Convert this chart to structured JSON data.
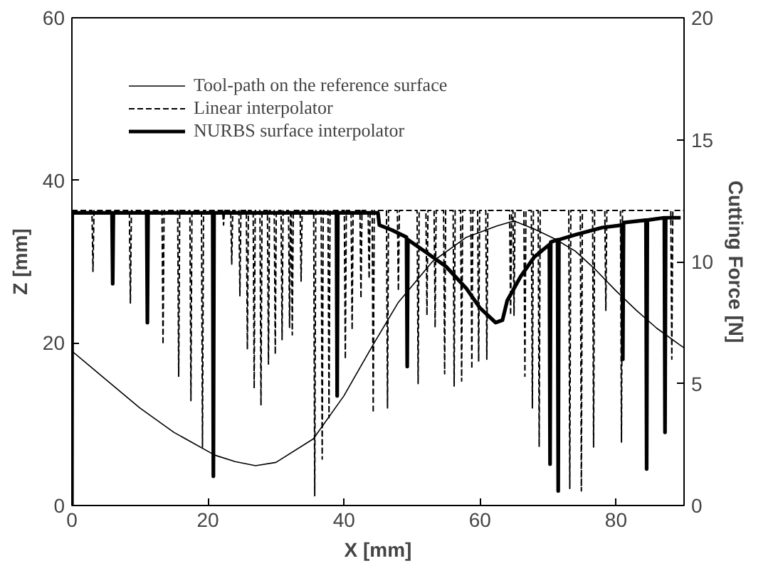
{
  "chart_data": {
    "type": "line",
    "xlabel": "X [mm]",
    "ylabel": "Z [mm]",
    "y2label": "Cutting Force [N]",
    "xlim": [
      0,
      90
    ],
    "xticks": [
      0,
      20,
      40,
      60,
      80
    ],
    "ylim": [
      0,
      60
    ],
    "yticks": [
      0,
      20,
      40,
      60
    ],
    "y2lim": [
      0,
      20
    ],
    "y2ticks": [
      0,
      5,
      10,
      15,
      20
    ],
    "grid": false,
    "legend": "top left",
    "marker": "none",
    "series": [
      {
        "name": "Tool-path on the reference surface",
        "color": "#000000",
        "line_style": "solid",
        "x": [
          0,
          5,
          10,
          15,
          21,
          24,
          27,
          30,
          35.5,
          40,
          44.3,
          48,
          53,
          58,
          62.5,
          65,
          68,
          71,
          74,
          77,
          80,
          83,
          86,
          89.3,
          90
        ],
        "values": [
          19,
          15.5,
          12,
          9,
          6.2,
          5.4,
          4.9,
          5.3,
          8.2,
          13.5,
          19.8,
          25,
          30,
          33,
          34.4,
          35,
          34,
          32.8,
          31.3,
          29,
          26.4,
          24,
          21.8,
          19.8,
          19.4
        ]
      },
      {
        "name": "Linear interpolator",
        "color": "#000000",
        "line_style": "dashed",
        "axis": "y2",
        "x": [
          0,
          2.95,
          3.1,
          3.25,
          8.45,
          8.6,
          8.75,
          13.25,
          13.4,
          13.55,
          15.55,
          15.7,
          15.85,
          17.35,
          17.5,
          17.65,
          19.05,
          19.2,
          19.35,
          22.15,
          22.3,
          22.45,
          23.35,
          23.5,
          23.65,
          24.55,
          24.7,
          24.85,
          25.65,
          25.8,
          25.95,
          26.65,
          26.8,
          26.95,
          27.65,
          27.8,
          27.95,
          28.75,
          28.9,
          29.05,
          29.75,
          29.9,
          30.05,
          30.75,
          30.9,
          31.05,
          31.85,
          32,
          32.15,
          32.25,
          32.4,
          32.55,
          33.55,
          33.7,
          33.85,
          35.55,
          35.7,
          35.85,
          36.65,
          36.8,
          36.95,
          37.65,
          37.8,
          37.95,
          40.05,
          40.2,
          40.35,
          41.05,
          41.2,
          41.35,
          42.35,
          42.5,
          42.65,
          43.55,
          43.7,
          43.85,
          44.15,
          44.3,
          44.45,
          46.25,
          46.4,
          46.55,
          47.85,
          48,
          48.15,
          50.75,
          50.9,
          51.05,
          52.05,
          52.2,
          52.35,
          53.25,
          53.4,
          53.55,
          54.65,
          54.8,
          54.95,
          56.05,
          56.2,
          56.35,
          57.15,
          57.3,
          57.45,
          58.65,
          58.8,
          58.95,
          59.65,
          59.8,
          59.95,
          60.85,
          61,
          61.15,
          64.35,
          64.5,
          64.65,
          64.85,
          65,
          65.15,
          66.45,
          66.6,
          66.75,
          67.55,
          67.7,
          67.85,
          68.55,
          68.7,
          68.85,
          73.05,
          73.2,
          73.35,
          74.75,
          74.9,
          75.05,
          76.55,
          76.7,
          76.85,
          78.35,
          78.5,
          78.65,
          80.65,
          80.8,
          80.95,
          88.05,
          88.2,
          88.35,
          90
        ],
        "values": [
          12.1,
          12.1,
          9.6,
          12.1,
          12.1,
          8.3,
          12.1,
          12.1,
          6.6,
          12.1,
          12.1,
          5.3,
          12.1,
          12.1,
          4.3,
          12.1,
          12.1,
          2.4,
          12.1,
          12.1,
          11.5,
          12.1,
          12.1,
          9.9,
          12.1,
          12.1,
          8.6,
          12.1,
          12.1,
          6.4,
          12.1,
          12.1,
          4.8,
          12.1,
          12.1,
          4.1,
          12.1,
          12.1,
          5.8,
          12.1,
          12.1,
          6.2,
          12.1,
          12.1,
          6.8,
          12.1,
          12.1,
          7.3,
          12.1,
          12.1,
          7.0,
          12.1,
          12.1,
          9.2,
          12.1,
          12.1,
          0.4,
          12.1,
          12.1,
          1.9,
          12.1,
          12.1,
          3.6,
          12.1,
          12.1,
          6.0,
          12.1,
          12.1,
          7.2,
          12.1,
          12.1,
          8.5,
          12.1,
          12.1,
          9.3,
          12.1,
          12.1,
          3.8,
          12.1,
          12.1,
          4.0,
          12.1,
          12.1,
          8.8,
          12.1,
          12.1,
          5.0,
          12.1,
          12.1,
          7.8,
          12.1,
          12.1,
          7.3,
          12.1,
          12.1,
          5.4,
          12.1,
          12.1,
          4.9,
          12.1,
          12.1,
          5.1,
          12.1,
          12.1,
          5.6,
          12.1,
          12.1,
          5.9,
          12.1,
          12.1,
          6.0,
          12.1,
          12.1,
          7.8,
          12.1,
          12.1,
          7.8,
          12.1,
          12.1,
          5.3,
          12.1,
          12.1,
          4.0,
          12.1,
          12.1,
          2.4,
          12.1,
          12.1,
          0.7,
          12.1,
          12.1,
          0.6,
          12.1,
          12.1,
          2.4,
          12.1,
          12.1,
          8.0,
          12.1,
          12.1,
          2.6,
          12.1,
          12.1,
          6.0,
          12.1,
          12.1
        ]
      },
      {
        "name": "NURBS surface interpolator",
        "color": "#000000",
        "line_style": "solid",
        "axis": "y2",
        "x": [
          0,
          0.05,
          5.9,
          6,
          6.1,
          11,
          11.1,
          11.2,
          20.7,
          20.8,
          20.9,
          38.9,
          39,
          39.1,
          45,
          45.2,
          47,
          49.2,
          49.3,
          49.4,
          52,
          55,
          58,
          60,
          62.3,
          63.3,
          64,
          66,
          68,
          70.2,
          70.3,
          70.4,
          71.4,
          71.5,
          71.6,
          74,
          78,
          80.9,
          81,
          81.1,
          84.4,
          84.5,
          84.6,
          87.1,
          87.2,
          87.3,
          89.5
        ],
        "values": [
          0,
          12,
          12,
          9.1,
          12,
          12,
          7.5,
          12,
          12,
          1.2,
          12,
          12,
          4.5,
          12,
          12,
          11.5,
          11.3,
          11.0,
          5.7,
          10.9,
          10.4,
          9.8,
          8.9,
          8.1,
          7.5,
          7.6,
          8.4,
          9.4,
          10.2,
          10.7,
          1.7,
          10.8,
          10.9,
          0.6,
          10.9,
          11.1,
          11.4,
          11.5,
          6.0,
          11.6,
          11.7,
          1.5,
          11.7,
          11.8,
          3.0,
          11.8,
          11.8
        ]
      }
    ]
  }
}
